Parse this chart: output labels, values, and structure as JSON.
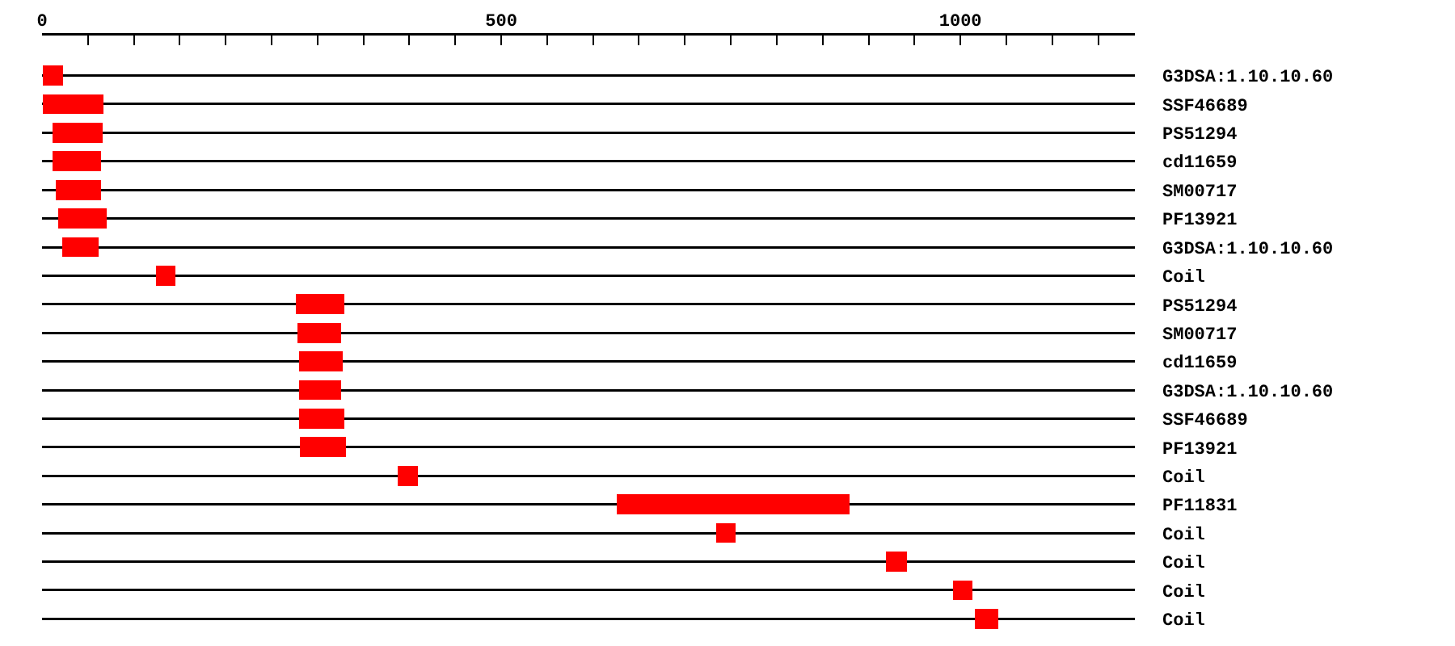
{
  "chart_data": {
    "type": "bar",
    "orientation": "horizontal",
    "categories": [
      "G3DSA:1.10.10.60",
      "SSF46689",
      "PS51294",
      "cd11659",
      "SM00717",
      "PF13921",
      "G3DSA:1.10.10.60",
      "Coil",
      "PS51294",
      "SM00717",
      "cd11659",
      "G3DSA:1.10.10.60",
      "SSF46689",
      "PF13921",
      "Coil",
      "PF11831",
      "Coil",
      "Coil",
      "Coil",
      "Coil"
    ],
    "base": [
      1,
      1,
      11,
      11,
      15,
      18,
      22,
      124,
      276,
      278,
      280,
      280,
      280,
      281,
      387,
      626,
      734,
      919,
      992,
      1016
    ],
    "values": [
      22,
      66,
      55,
      53,
      49,
      52,
      40,
      21,
      53,
      48,
      47,
      46,
      49,
      50,
      22,
      253,
      21,
      23,
      21,
      25
    ],
    "color": "#ff0000",
    "xlim": [
      0,
      1190
    ],
    "xticks": [
      0,
      {
        "value": 50,
        "label": null
      },
      {
        "value": 100,
        "label": null
      },
      {
        "value": 150,
        "label": null
      },
      {
        "value": 200,
        "label": null
      },
      {
        "value": 250,
        "label": null
      },
      {
        "value": 300,
        "label": null
      },
      {
        "value": 350,
        "label": null
      },
      {
        "value": 400,
        "label": null
      },
      {
        "value": 450,
        "label": null
      },
      500,
      {
        "value": 550,
        "label": null
      },
      {
        "value": 600,
        "label": null
      },
      {
        "value": 650,
        "label": null
      },
      {
        "value": 700,
        "label": null
      },
      {
        "value": 750,
        "label": null
      },
      {
        "value": 800,
        "label": null
      },
      {
        "value": 850,
        "label": null
      },
      {
        "value": 900,
        "label": null
      },
      {
        "value": 950,
        "label": null
      },
      1000,
      {
        "value": 1050,
        "label": null
      },
      {
        "value": 1100,
        "label": null
      },
      {
        "value": 1150,
        "label": null
      }
    ],
    "grid": "y"
  }
}
